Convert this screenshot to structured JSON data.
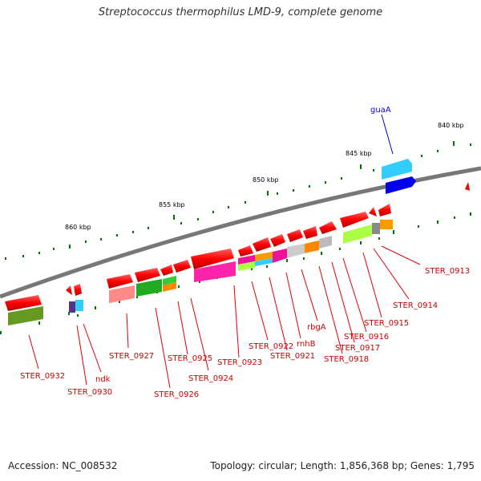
{
  "title": "Streptococcus thermophilus LMD-9, complete genome",
  "footer": {
    "accession": "Accession: NC_008532",
    "summary": "Topology: circular; Length: 1,856,368 bp; Genes: 1,795"
  },
  "scale_labels": [
    "840 kbp",
    "845 kbp",
    "850 kbp",
    "855 kbp",
    "860 kbp"
  ],
  "gene_labels": {
    "guaA": "guaA",
    "STER_0913": "STER_0913",
    "STER_0914": "STER_0914",
    "STER_0915": "STER_0915",
    "STER_0916": "STER_0916",
    "STER_0917": "STER_0917",
    "STER_0918": "STER_0918",
    "rbgA": "rbgA",
    "rnhB": "rnhB",
    "STER_0921": "STER_0921",
    "STER_0922": "STER_0922",
    "STER_0923": "STER_0923",
    "STER_0924": "STER_0924",
    "STER_0925": "STER_0925",
    "STER_0926": "STER_0926",
    "STER_0927": "STER_0927",
    "ndk": "ndk",
    "STER_0930": "STER_0930",
    "STER_0932": "STER_0932"
  },
  "colors": {
    "backbone": "#808080",
    "gene": "#ff0000",
    "tick": "#007700",
    "label_line": "#cc0000",
    "guaA_label": "#0000cc"
  }
}
